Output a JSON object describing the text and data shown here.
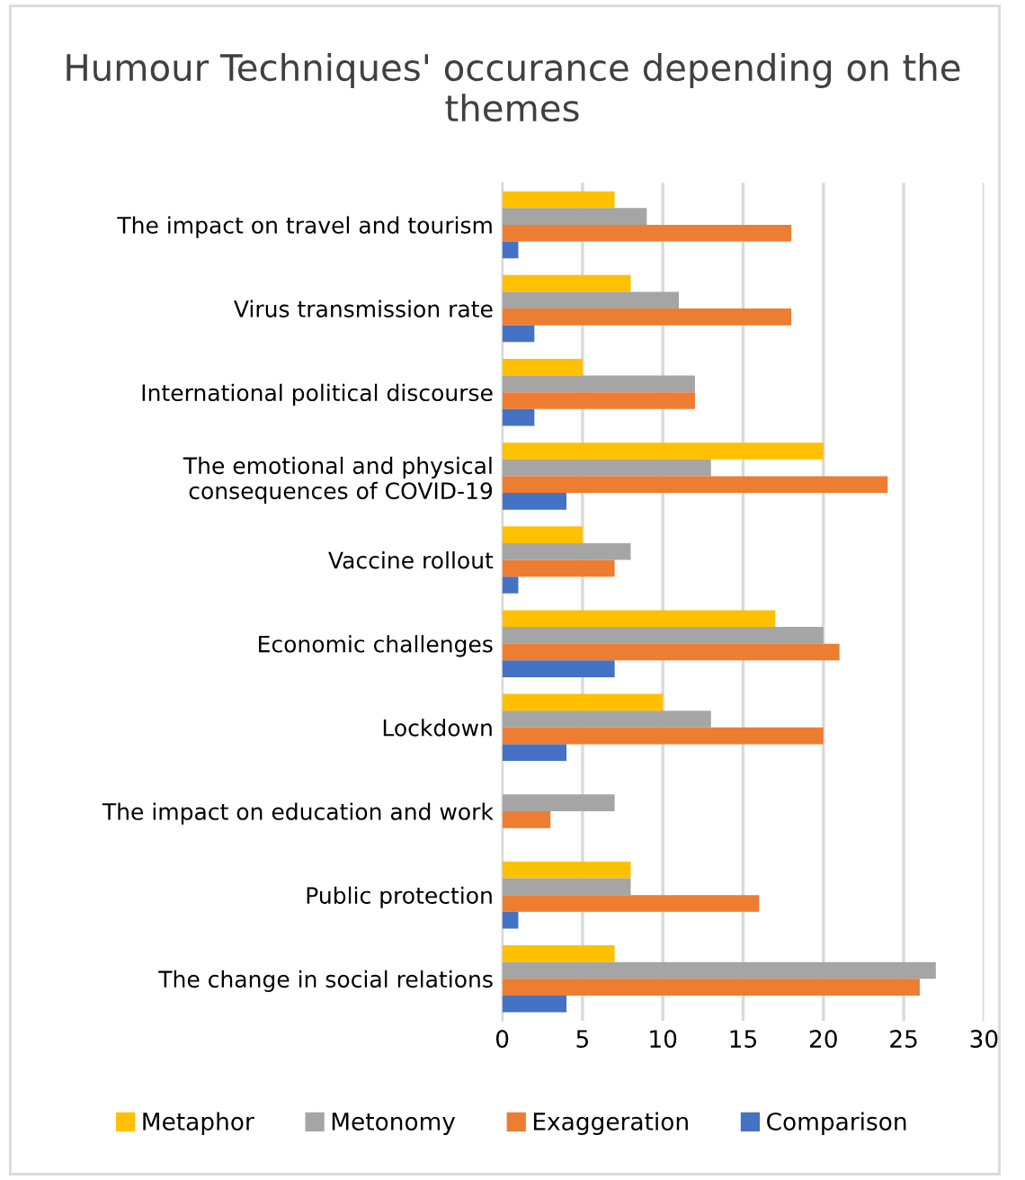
{
  "chart_data": {
    "type": "bar",
    "orientation": "horizontal",
    "title": "Humour Techniques' occurance depending on the themes",
    "categories": [
      "The impact on travel and tourism",
      "Virus transmission rate",
      "International political discourse",
      "The emotional and physical consequences of COVID-19",
      "Vaccine rollout",
      "Economic challenges",
      "Lockdown",
      "The impact on education and work",
      "Public protection",
      "The change in social relations"
    ],
    "series": [
      {
        "name": "Metaphor",
        "color": "#ffc000",
        "values": [
          7,
          8,
          5,
          20,
          5,
          17,
          10,
          0,
          8,
          7
        ]
      },
      {
        "name": "Metonomy",
        "color": "#a5a5a5",
        "values": [
          9,
          11,
          12,
          13,
          8,
          20,
          13,
          7,
          8,
          27
        ]
      },
      {
        "name": "Exaggeration",
        "color": "#ed7d31",
        "values": [
          18,
          18,
          12,
          24,
          7,
          21,
          20,
          3,
          16,
          26
        ]
      },
      {
        "name": "Comparison",
        "color": "#4472c4",
        "values": [
          1,
          2,
          2,
          4,
          1,
          7,
          4,
          0,
          1,
          4
        ]
      }
    ],
    "xlim": [
      0,
      30
    ],
    "xticks": [
      0,
      5,
      10,
      15,
      20,
      25,
      30
    ],
    "grid": "x",
    "legend": "bottom"
  }
}
